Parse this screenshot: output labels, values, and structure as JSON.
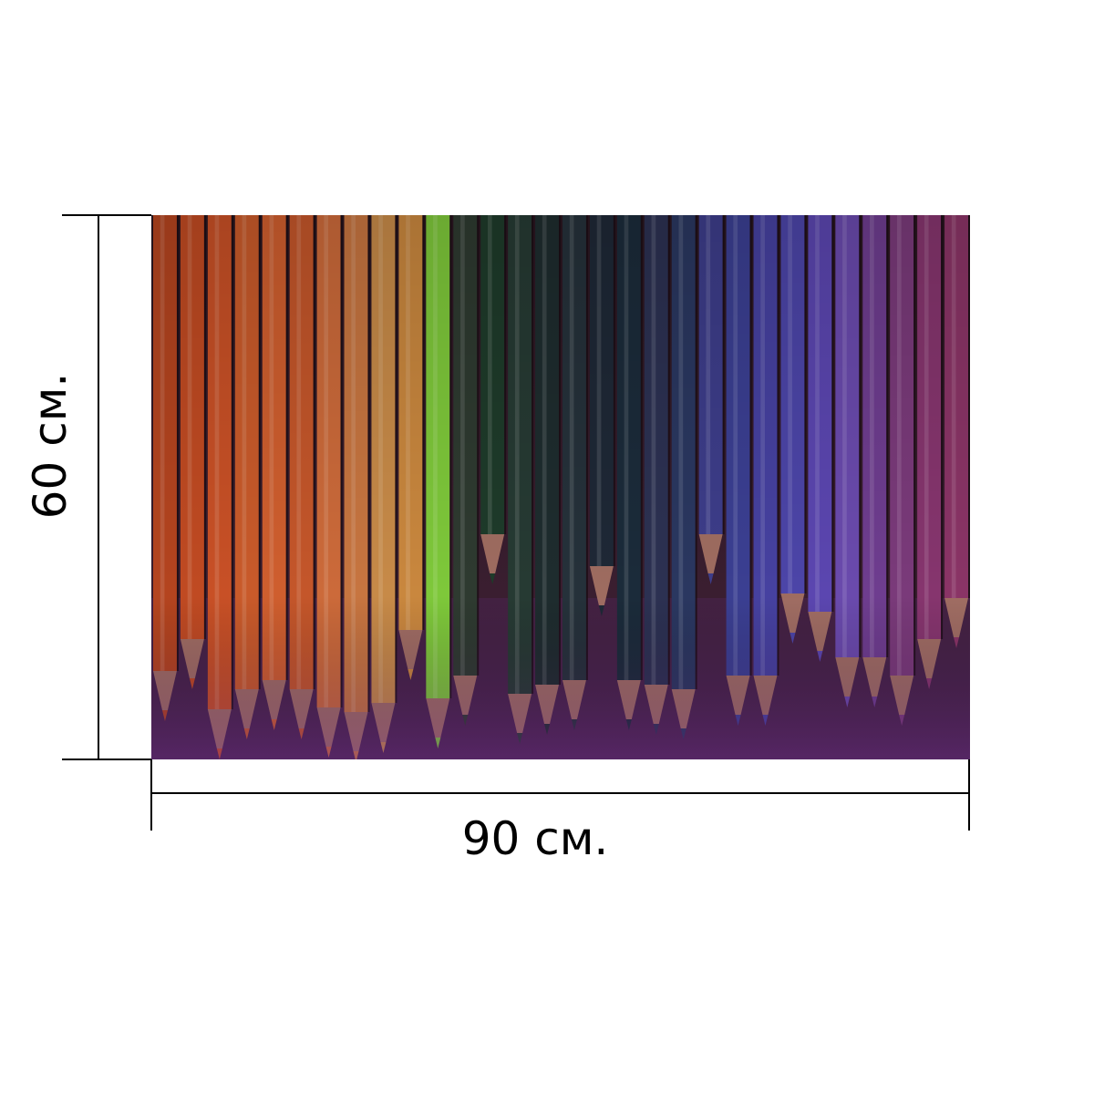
{
  "dimensions": {
    "width_label": "90 см.",
    "height_label": "60 см."
  },
  "photo": {
    "subject_icon": "colored-pencils-photo-icon",
    "pencil_colors": [
      "#b4441f",
      "#c04a22",
      "#c85026",
      "#c95a2a",
      "#cf5e2e",
      "#c4562a",
      "#cc6a3a",
      "#c77540",
      "#c78a48",
      "#c9873e",
      "#7ec83a",
      "#2e3a30",
      "#1e3b2a",
      "#263a33",
      "#1e2c2e",
      "#25313a",
      "#1e2836",
      "#1b2b3a",
      "#2c3152",
      "#2a3760",
      "#3d3d8a",
      "#3b3f92",
      "#4641a0",
      "#4c45a8",
      "#5b46b0",
      "#6a4aad",
      "#6e3d8f",
      "#7a3a7a",
      "#86356e",
      "#8a3466"
    ],
    "shadow_color": "#1a0d14",
    "floor_color": "#4a2450"
  }
}
